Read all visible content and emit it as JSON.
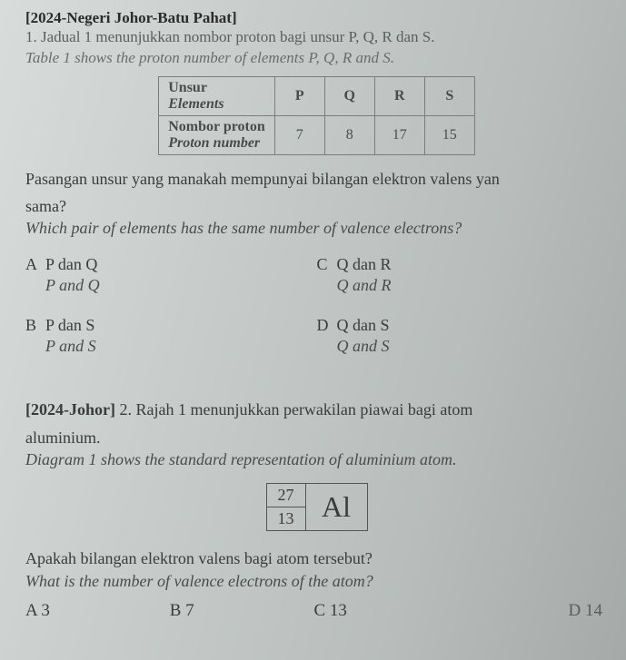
{
  "q1": {
    "source": "[2024-Negeri Johor-Batu Pahat]",
    "num": "1.",
    "line_ms": "Jadual 1 menunjukkan nombor proton bagi unsur P, Q, R dan S.",
    "line_en": "Table 1 shows the proton number of elements P, Q, R and S.",
    "table": {
      "row1_ms": "Unsur",
      "row1_en": "Elements",
      "row2_ms": "Nombor proton",
      "row2_en": "Proton number",
      "headers": [
        "P",
        "Q",
        "R",
        "S"
      ],
      "values": [
        "7",
        "8",
        "17",
        "15"
      ]
    },
    "stem_ms_a": "Pasangan unsur yang manakah mempunyai bilangan elektron valens yan",
    "stem_ms_b": "sama?",
    "stem_en": "Which pair of elements has the same number of valence electrons?",
    "choices": {
      "A": {
        "lab": "A",
        "ms": "P dan Q",
        "en": "P and Q"
      },
      "B": {
        "lab": "B",
        "ms": "P dan S",
        "en": "P and S"
      },
      "C": {
        "lab": "C",
        "ms": "Q dan R",
        "en": "Q and R"
      },
      "D": {
        "lab": "D",
        "ms": "Q dan S",
        "en": "Q and S"
      }
    }
  },
  "q2": {
    "source": "[2024-Johor]",
    "num": "2.",
    "line_ms_a": "Rajah 1 menunjukkan perwakilan piawai bagi atom",
    "line_ms_b": "aluminium.",
    "line_en": "Diagram 1 shows the standard representation of aluminium atom.",
    "atom": {
      "mass": "27",
      "proton": "13",
      "symbol": "Al"
    },
    "stem_ms": "Apakah bilangan elektron valens bagi atom tersebut?",
    "stem_en": "What is the number of valence electrons of the atom?",
    "choices": {
      "A": "A 3",
      "B": "B 7",
      "C": "C 13",
      "D": "D 14"
    }
  }
}
